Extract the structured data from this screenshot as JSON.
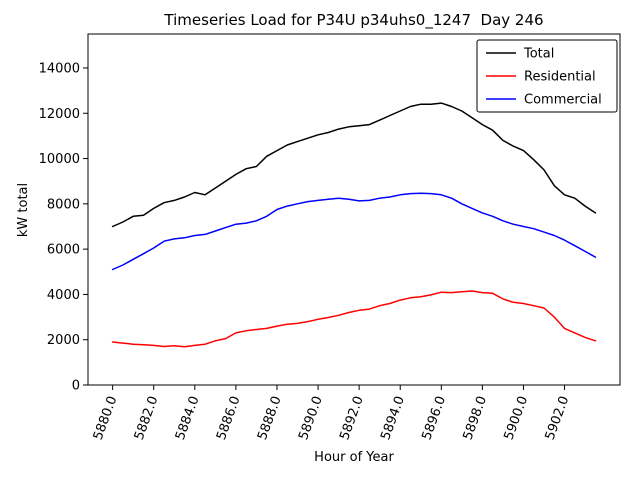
{
  "chart_data": {
    "type": "line",
    "title": "Timeseries Load for P34U p34uhs0_1247  Day 246",
    "xlabel": "Hour of Year",
    "ylabel": "kW total",
    "xlim": [
      5878.8,
      5904.7
    ],
    "ylim": [
      0,
      15500
    ],
    "grid": false,
    "legend_position": "upper right",
    "xticks": [
      5880,
      5882,
      5884,
      5886,
      5888,
      5890,
      5892,
      5894,
      5896,
      5898,
      5900,
      5902
    ],
    "xtick_labels": [
      "5880.0",
      "5882.0",
      "5884.0",
      "5886.0",
      "5888.0",
      "5890.0",
      "5892.0",
      "5894.0",
      "5896.0",
      "5898.0",
      "5900.0",
      "5902.0"
    ],
    "yticks": [
      0,
      2000,
      4000,
      6000,
      8000,
      10000,
      12000,
      14000
    ],
    "ytick_labels": [
      "0",
      "2000",
      "4000",
      "6000",
      "8000",
      "10000",
      "12000",
      "14000"
    ],
    "x": [
      5880.0,
      5880.5,
      5881.0,
      5881.5,
      5882.0,
      5882.5,
      5883.0,
      5883.5,
      5884.0,
      5884.5,
      5885.0,
      5885.5,
      5886.0,
      5886.5,
      5887.0,
      5887.5,
      5888.0,
      5888.5,
      5889.0,
      5889.5,
      5890.0,
      5890.5,
      5891.0,
      5891.5,
      5892.0,
      5892.5,
      5893.0,
      5893.5,
      5894.0,
      5894.5,
      5895.0,
      5895.5,
      5896.0,
      5896.5,
      5897.0,
      5897.5,
      5898.0,
      5898.5,
      5899.0,
      5899.5,
      5900.0,
      5900.5,
      5901.0,
      5901.5,
      5902.0,
      5902.5,
      5903.0,
      5903.5
    ],
    "series": [
      {
        "name": "Total",
        "color": "#000000",
        "values": [
          7000,
          7200,
          7450,
          7500,
          7800,
          8050,
          8150,
          8300,
          8500,
          8400,
          8700,
          9000,
          9300,
          9550,
          9650,
          10100,
          10350,
          10600,
          10750,
          10900,
          11050,
          11150,
          11300,
          11400,
          11450,
          11500,
          11700,
          11900,
          12100,
          12300,
          12400,
          12400,
          12450,
          12300,
          12100,
          11800,
          11500,
          11250,
          10800,
          10550,
          10350,
          9950,
          9500,
          8800,
          8400,
          8250,
          7900,
          7600
        ]
      },
      {
        "name": "Residential",
        "color": "#ff0000",
        "values": [
          1900,
          1850,
          1800,
          1780,
          1750,
          1700,
          1730,
          1690,
          1750,
          1800,
          1950,
          2050,
          2300,
          2400,
          2450,
          2500,
          2600,
          2680,
          2720,
          2800,
          2900,
          2980,
          3080,
          3200,
          3300,
          3350,
          3500,
          3600,
          3750,
          3850,
          3900,
          3980,
          4100,
          4080,
          4120,
          4150,
          4080,
          4050,
          3800,
          3650,
          3600,
          3500,
          3400,
          3000,
          2500,
          2300,
          2100,
          1950
        ]
      },
      {
        "name": "Commercial",
        "color": "#0000ff",
        "values": [
          5100,
          5300,
          5550,
          5800,
          6050,
          6350,
          6450,
          6500,
          6600,
          6650,
          6800,
          6950,
          7100,
          7150,
          7250,
          7450,
          7750,
          7900,
          8000,
          8100,
          8150,
          8200,
          8250,
          8200,
          8130,
          8150,
          8250,
          8300,
          8400,
          8450,
          8470,
          8450,
          8400,
          8250,
          8000,
          7800,
          7600,
          7450,
          7250,
          7100,
          7000,
          6900,
          6750,
          6600,
          6400,
          6150,
          5900,
          5650
        ]
      }
    ]
  }
}
